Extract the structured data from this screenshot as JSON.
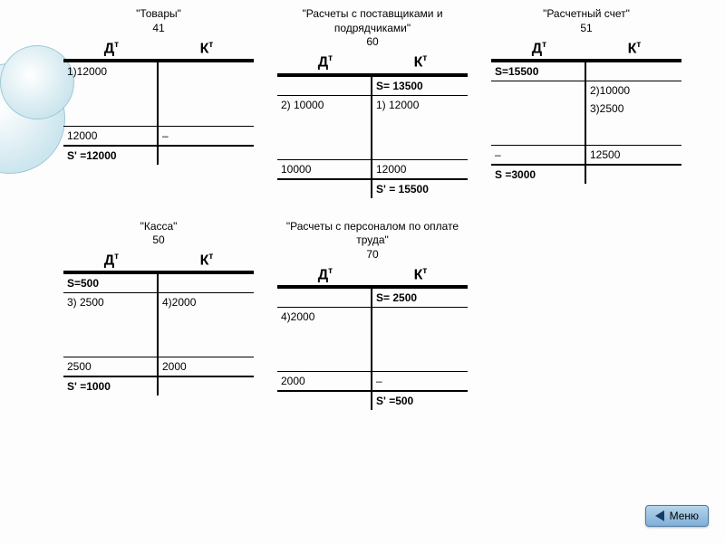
{
  "colors": {
    "ring_border": "#9ec9d8",
    "menu_bg_top": "#b7d4ea",
    "menu_bg_bottom": "#7fb0d8",
    "menu_border": "#4a7aa8",
    "arrow_fill": "#1a3a66"
  },
  "headers": {
    "debit": "Д",
    "credit": "К",
    "sup": "т"
  },
  "labels": {
    "S": "S",
    "Sprime": "S'",
    "menu": "Меню"
  },
  "accounts": [
    {
      "title": "\"Товары\"",
      "number": "41",
      "opening": {
        "debit": "",
        "credit": ""
      },
      "entries_debit": [
        "1)12000"
      ],
      "entries_credit": [],
      "subtotal": {
        "debit": "12000",
        "credit": "–"
      },
      "closing": {
        "side": "debit",
        "label": "S'",
        "value": "=12000"
      }
    },
    {
      "title": "\"Расчеты с поставщиками и подрядчиками\"",
      "number": "60",
      "opening": {
        "debit": "",
        "credit": "S= 13500"
      },
      "entries_debit": [
        "2) 10000"
      ],
      "entries_credit": [
        "1) 12000"
      ],
      "subtotal": {
        "debit": "10000",
        "credit": "12000"
      },
      "closing": {
        "side": "credit",
        "label": "S'",
        "value": "= 15500"
      }
    },
    {
      "title": "\"Расчетный счет\"",
      "number": "51",
      "opening": {
        "debit": "S=15500",
        "credit": ""
      },
      "entries_debit": [],
      "entries_credit": [
        "2)10000",
        "3)2500"
      ],
      "subtotal": {
        "debit": "–",
        "credit": "12500"
      },
      "closing": {
        "side": "debit",
        "label": "S",
        "value": "=3000"
      }
    },
    {
      "title": "\"Касса\"",
      "number": "50",
      "opening": {
        "debit": "S=500",
        "credit": ""
      },
      "entries_debit": [
        "3) 2500"
      ],
      "entries_credit": [
        "4)2000"
      ],
      "subtotal": {
        "debit": "2500",
        "credit": "2000"
      },
      "closing": {
        "side": "debit",
        "label": "S'",
        "value": "=1000"
      }
    },
    {
      "title": "\"Расчеты с персоналом по оплате труда\"",
      "number": "70",
      "opening": {
        "debit": "",
        "credit": "S= 2500"
      },
      "entries_debit": [
        "4)2000"
      ],
      "entries_credit": [],
      "subtotal": {
        "debit": "2000",
        "credit": "–"
      },
      "closing": {
        "side": "credit",
        "label": "S'",
        "value": "=500"
      }
    }
  ]
}
